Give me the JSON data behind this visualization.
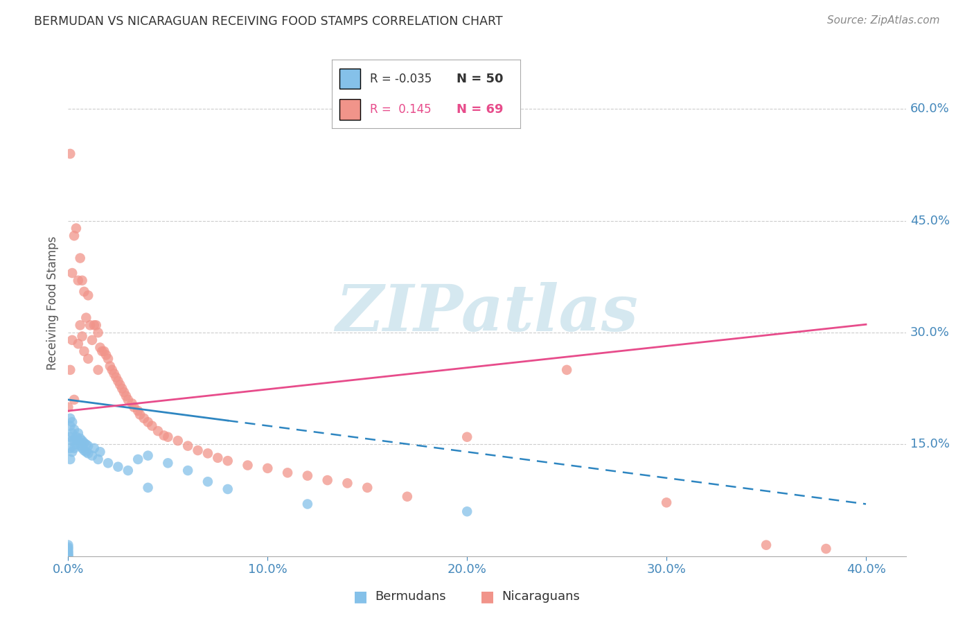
{
  "title": "BERMUDAN VS NICARAGUAN RECEIVING FOOD STAMPS CORRELATION CHART",
  "source": "Source: ZipAtlas.com",
  "ylabel": "Receiving Food Stamps",
  "ytick_vals": [
    0.6,
    0.45,
    0.3,
    0.15
  ],
  "ytick_labels": [
    "60.0%",
    "45.0%",
    "30.0%",
    "15.0%"
  ],
  "xtick_vals": [
    0.0,
    0.1,
    0.2,
    0.3,
    0.4
  ],
  "xtick_labels": [
    "0.0%",
    "10.0%",
    "20.0%",
    "30.0%",
    "40.0%"
  ],
  "xlim": [
    0.0,
    0.42
  ],
  "ylim": [
    0.0,
    0.68
  ],
  "bermudan_color": "#85c1e9",
  "nicaraguan_color": "#f1948a",
  "bermudan_line_color": "#2e86c1",
  "nicaraguan_line_color": "#e74c8b",
  "bermudan_line_dash_color": "#85c1e9",
  "watermark_color": "#d5e8f0",
  "axis_label_color": "#4488bb",
  "title_color": "#333333",
  "source_color": "#888888",
  "grid_color": "#cccccc",
  "background_color": "#ffffff",
  "bermudan_R": -0.035,
  "bermudan_N": 50,
  "nicaraguan_R": 0.145,
  "nicaraguan_N": 69,
  "bermudan_x": [
    0.0,
    0.0,
    0.0,
    0.0,
    0.0,
    0.0,
    0.0,
    0.0,
    0.001,
    0.001,
    0.001,
    0.001,
    0.001,
    0.002,
    0.002,
    0.002,
    0.002,
    0.003,
    0.003,
    0.003,
    0.004,
    0.004,
    0.005,
    0.005,
    0.006,
    0.006,
    0.007,
    0.007,
    0.008,
    0.008,
    0.009,
    0.009,
    0.01,
    0.01,
    0.012,
    0.013,
    0.015,
    0.016,
    0.02,
    0.025,
    0.03,
    0.035,
    0.04,
    0.04,
    0.05,
    0.06,
    0.07,
    0.08,
    0.12,
    0.2
  ],
  "bermudan_y": [
    0.0,
    0.001,
    0.003,
    0.005,
    0.007,
    0.01,
    0.012,
    0.015,
    0.13,
    0.145,
    0.16,
    0.175,
    0.185,
    0.14,
    0.155,
    0.165,
    0.18,
    0.145,
    0.155,
    0.17,
    0.15,
    0.16,
    0.155,
    0.165,
    0.148,
    0.158,
    0.145,
    0.155,
    0.142,
    0.152,
    0.14,
    0.15,
    0.138,
    0.148,
    0.135,
    0.145,
    0.13,
    0.14,
    0.125,
    0.12,
    0.115,
    0.13,
    0.135,
    0.092,
    0.125,
    0.115,
    0.1,
    0.09,
    0.07,
    0.06
  ],
  "nicaraguan_x": [
    0.0,
    0.001,
    0.001,
    0.002,
    0.002,
    0.003,
    0.003,
    0.004,
    0.005,
    0.005,
    0.006,
    0.006,
    0.007,
    0.007,
    0.008,
    0.008,
    0.009,
    0.01,
    0.01,
    0.011,
    0.012,
    0.013,
    0.014,
    0.015,
    0.015,
    0.016,
    0.017,
    0.018,
    0.019,
    0.02,
    0.021,
    0.022,
    0.023,
    0.024,
    0.025,
    0.026,
    0.027,
    0.028,
    0.029,
    0.03,
    0.032,
    0.033,
    0.035,
    0.036,
    0.038,
    0.04,
    0.042,
    0.045,
    0.048,
    0.05,
    0.055,
    0.06,
    0.065,
    0.07,
    0.075,
    0.08,
    0.09,
    0.1,
    0.11,
    0.12,
    0.13,
    0.14,
    0.15,
    0.17,
    0.2,
    0.25,
    0.3,
    0.35,
    0.38
  ],
  "nicaraguan_y": [
    0.2,
    0.54,
    0.25,
    0.38,
    0.29,
    0.43,
    0.21,
    0.44,
    0.37,
    0.285,
    0.4,
    0.31,
    0.37,
    0.295,
    0.355,
    0.275,
    0.32,
    0.35,
    0.265,
    0.31,
    0.29,
    0.31,
    0.31,
    0.3,
    0.25,
    0.28,
    0.275,
    0.275,
    0.27,
    0.265,
    0.255,
    0.25,
    0.245,
    0.24,
    0.235,
    0.23,
    0.225,
    0.22,
    0.215,
    0.21,
    0.205,
    0.2,
    0.195,
    0.19,
    0.185,
    0.18,
    0.175,
    0.168,
    0.162,
    0.16,
    0.155,
    0.148,
    0.142,
    0.138,
    0.132,
    0.128,
    0.122,
    0.118,
    0.112,
    0.108,
    0.102,
    0.098,
    0.092,
    0.08,
    0.16,
    0.25,
    0.072,
    0.015,
    0.01
  ]
}
